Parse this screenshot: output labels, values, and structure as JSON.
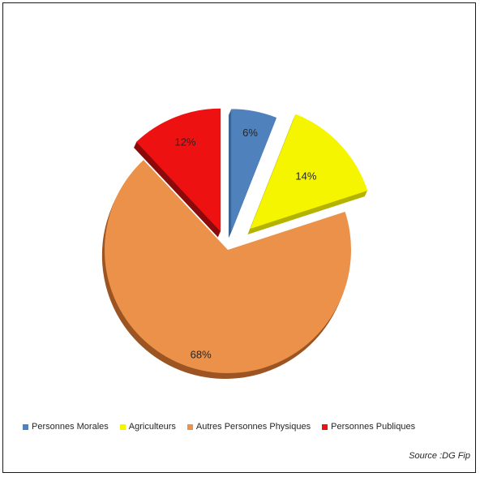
{
  "chart_data": {
    "type": "pie",
    "exploded": true,
    "three_d": true,
    "slices": [
      {
        "name": "Personnes Morales",
        "value": 6,
        "label": "6%",
        "color": "#4F81BD",
        "shade": "#3a6594"
      },
      {
        "name": "Agriculteurs",
        "value": 14,
        "label": "14%",
        "color": "#F5F500",
        "shade": "#b3b300"
      },
      {
        "name": "Autres Personnes Physiques",
        "value": 68,
        "label": "68%",
        "color": "#EB914A",
        "shade": "#9c5523"
      },
      {
        "name": "Personnes Publiques",
        "value": 12,
        "label": "12%",
        "color": "#EE1111",
        "shade": "#8c0a0a"
      }
    ],
    "legend_placement": "bottom"
  },
  "source": "Source :DG Fip"
}
